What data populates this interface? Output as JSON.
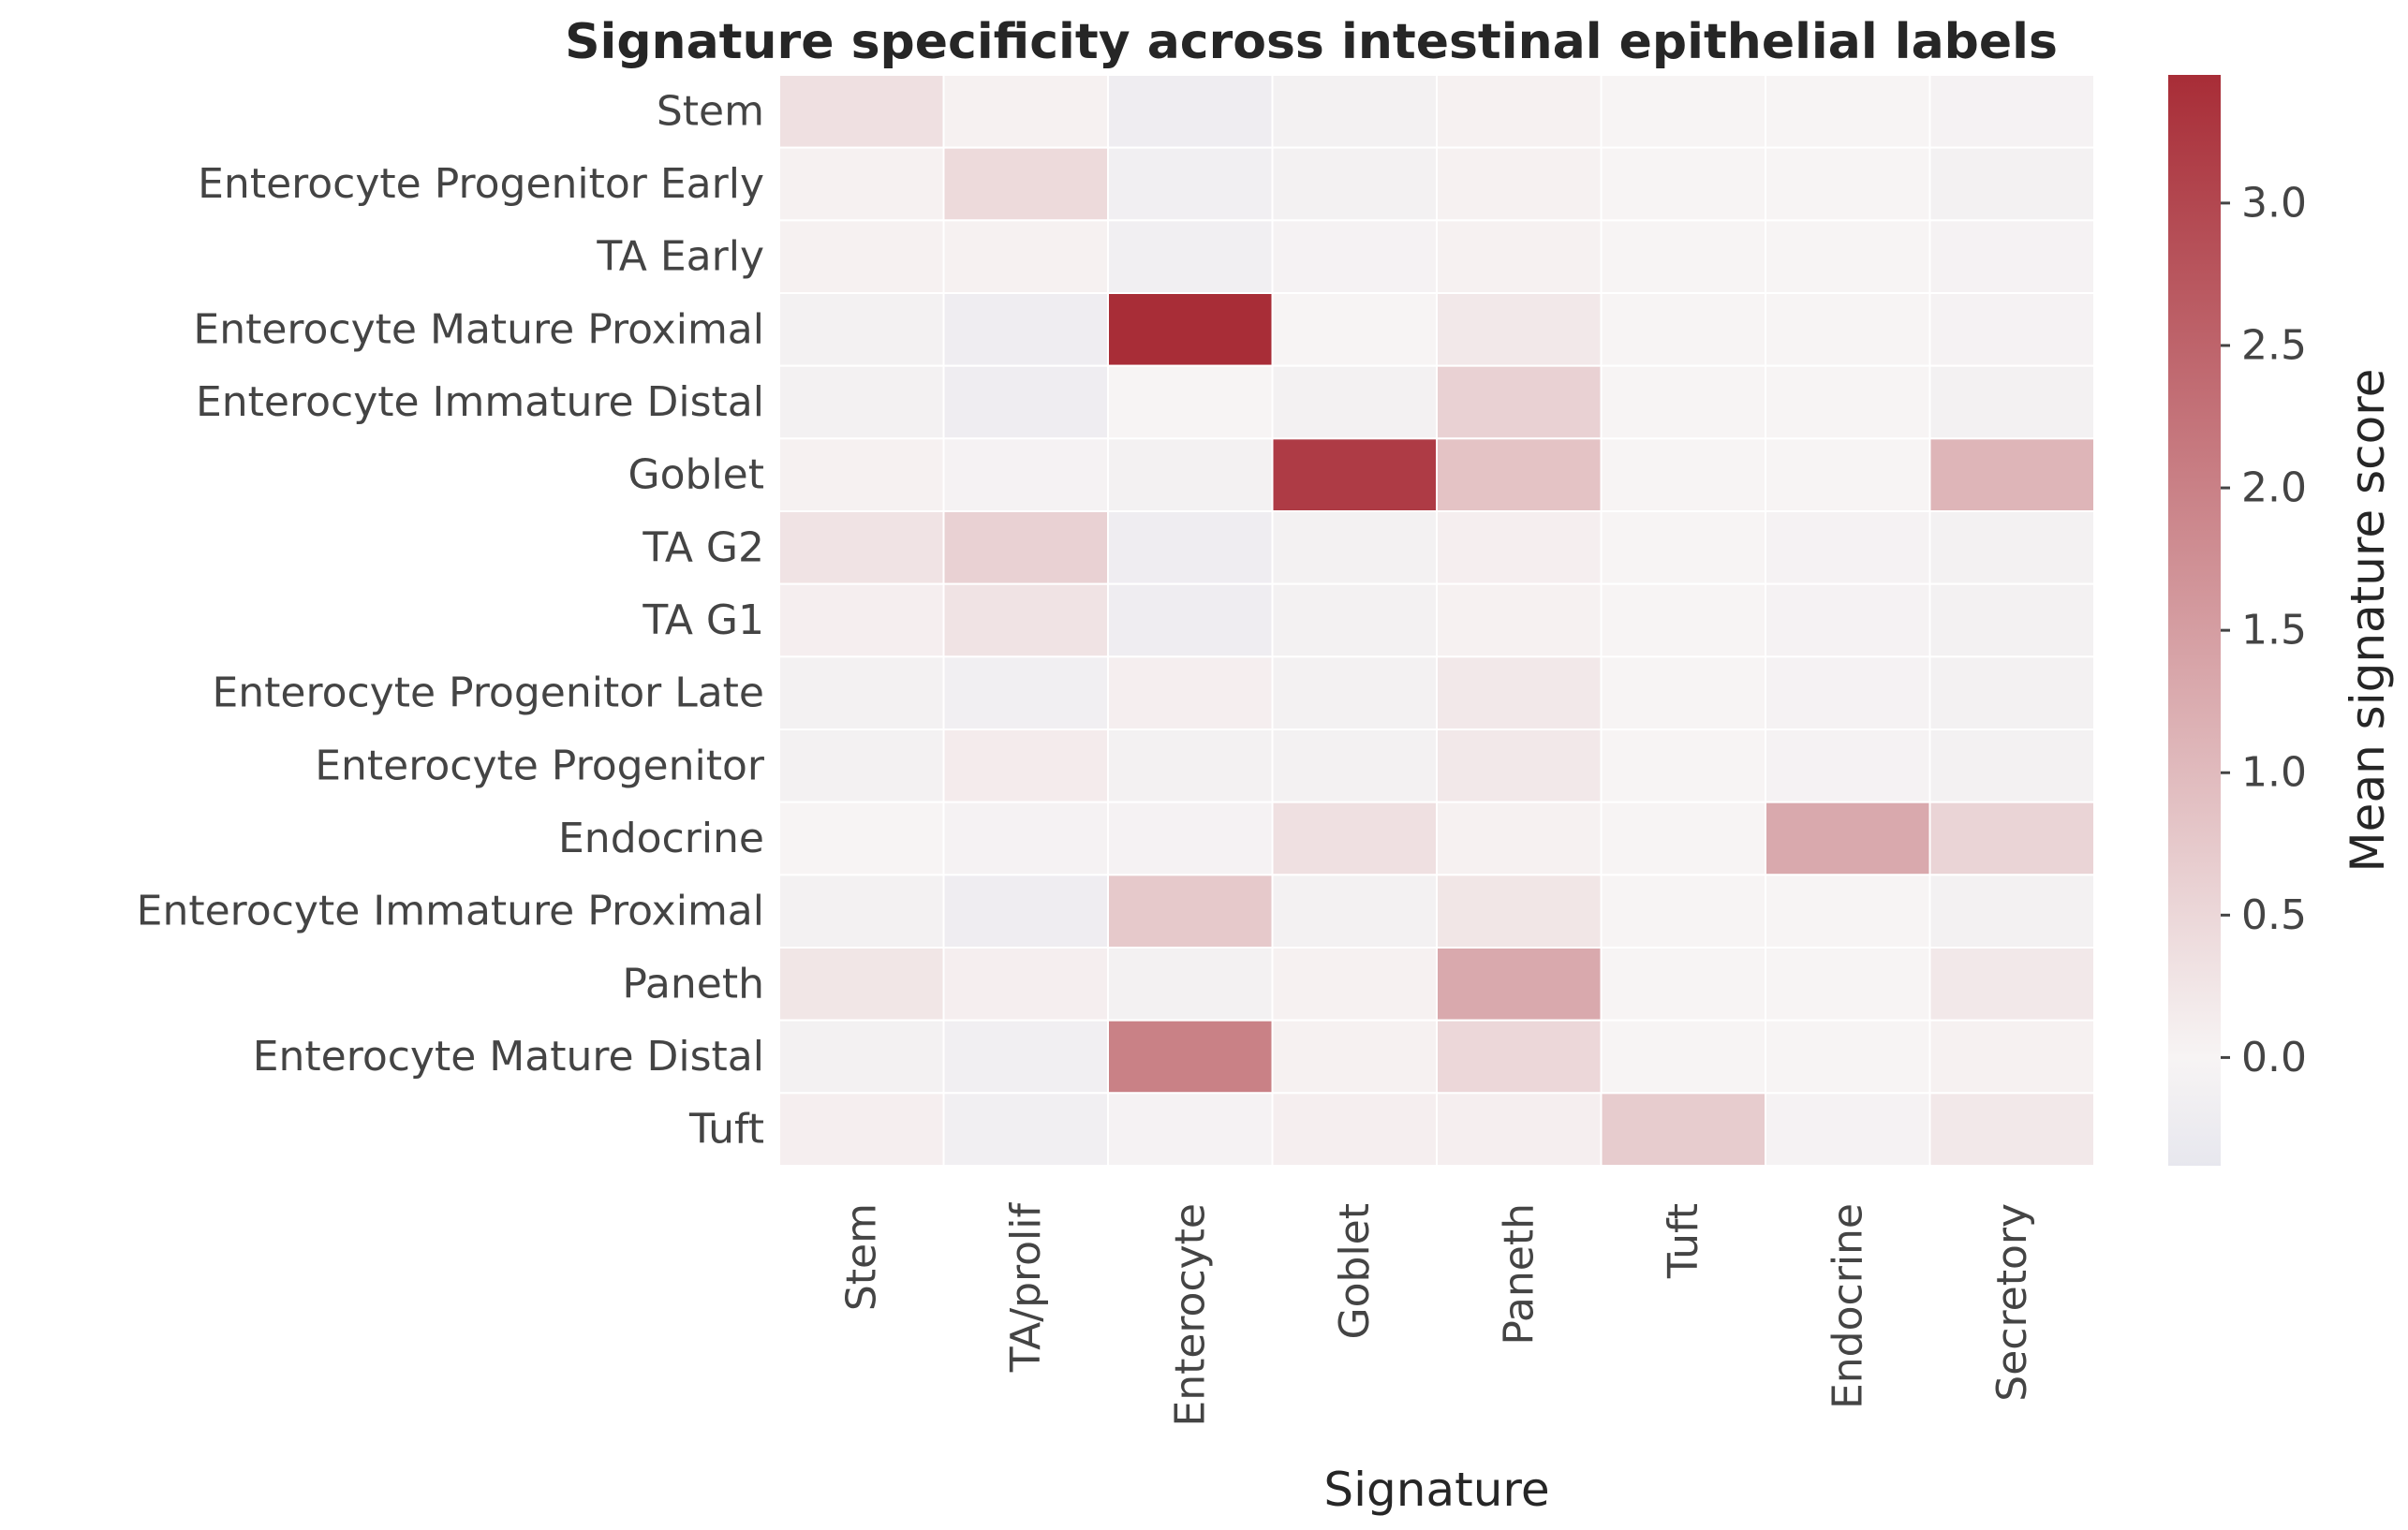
{
  "chart_data": {
    "type": "heatmap",
    "title": "Signature specificity across intestinal epithelial labels",
    "xlabel": "Signature",
    "ylabel": "",
    "x_categories": [
      "Stem",
      "TA/prolif",
      "Enterocyte",
      "Goblet",
      "Paneth",
      "Tuft",
      "Endocrine",
      "Secretory"
    ],
    "y_categories": [
      "Stem",
      "Enterocyte Progenitor Early",
      "TA Early",
      "Enterocyte Mature Proximal",
      "Enterocyte Immature Distal",
      "Goblet",
      "TA G2",
      "TA G1",
      "Enterocyte Progenitor Late",
      "Enterocyte Progenitor",
      "Endocrine",
      "Enterocyte Immature Proximal",
      "Paneth",
      "Enterocyte Mature Distal",
      "Tuft"
    ],
    "values": [
      [
        0.35,
        0.05,
        -0.2,
        -0.1,
        0.05,
        0.0,
        0.0,
        -0.05
      ],
      [
        0.05,
        0.45,
        -0.15,
        -0.1,
        0.05,
        0.0,
        0.0,
        -0.1
      ],
      [
        0.05,
        0.05,
        -0.15,
        -0.05,
        0.05,
        0.0,
        0.0,
        -0.05
      ],
      [
        -0.1,
        -0.2,
        3.45,
        0.0,
        0.2,
        0.0,
        0.0,
        -0.05
      ],
      [
        -0.1,
        -0.2,
        0.0,
        -0.1,
        0.6,
        0.0,
        0.0,
        -0.1
      ],
      [
        0.05,
        -0.05,
        -0.1,
        3.2,
        0.85,
        0.0,
        0.0,
        1.1
      ],
      [
        0.3,
        0.6,
        -0.2,
        -0.1,
        0.1,
        0.0,
        -0.05,
        -0.1
      ],
      [
        0.1,
        0.3,
        -0.2,
        -0.1,
        0.05,
        0.0,
        -0.05,
        -0.1
      ],
      [
        -0.1,
        -0.15,
        0.1,
        -0.1,
        0.2,
        0.0,
        -0.05,
        -0.1
      ],
      [
        -0.1,
        0.15,
        -0.1,
        -0.1,
        0.2,
        0.0,
        -0.05,
        -0.1
      ],
      [
        0.0,
        -0.05,
        -0.05,
        0.35,
        0.05,
        0.0,
        1.3,
        0.55
      ],
      [
        -0.1,
        -0.2,
        0.75,
        -0.1,
        0.25,
        0.0,
        0.0,
        -0.1
      ],
      [
        0.25,
        0.1,
        -0.1,
        0.05,
        1.3,
        0.0,
        0.0,
        0.2
      ],
      [
        -0.1,
        -0.15,
        2.0,
        0.05,
        0.5,
        0.0,
        0.0,
        0.05
      ],
      [
        0.1,
        -0.15,
        -0.05,
        0.1,
        0.1,
        0.7,
        -0.05,
        0.2
      ]
    ],
    "colorbar": {
      "label": "Mean signature score",
      "vmin": -0.38,
      "vmax": 3.45,
      "ticks": [
        0.0,
        0.5,
        1.0,
        1.5,
        2.0,
        2.5,
        3.0
      ],
      "tick_labels": [
        "0.0",
        "0.5",
        "1.0",
        "1.5",
        "2.0",
        "2.5",
        "3.0"
      ],
      "colors": {
        "low": "#e7e7ee",
        "mid": "#f7f4f4",
        "high": "#a82d37"
      },
      "mid_value": 0.0
    },
    "grid": true,
    "grid_color": "#ffffff",
    "legend": "colorbar-right"
  }
}
